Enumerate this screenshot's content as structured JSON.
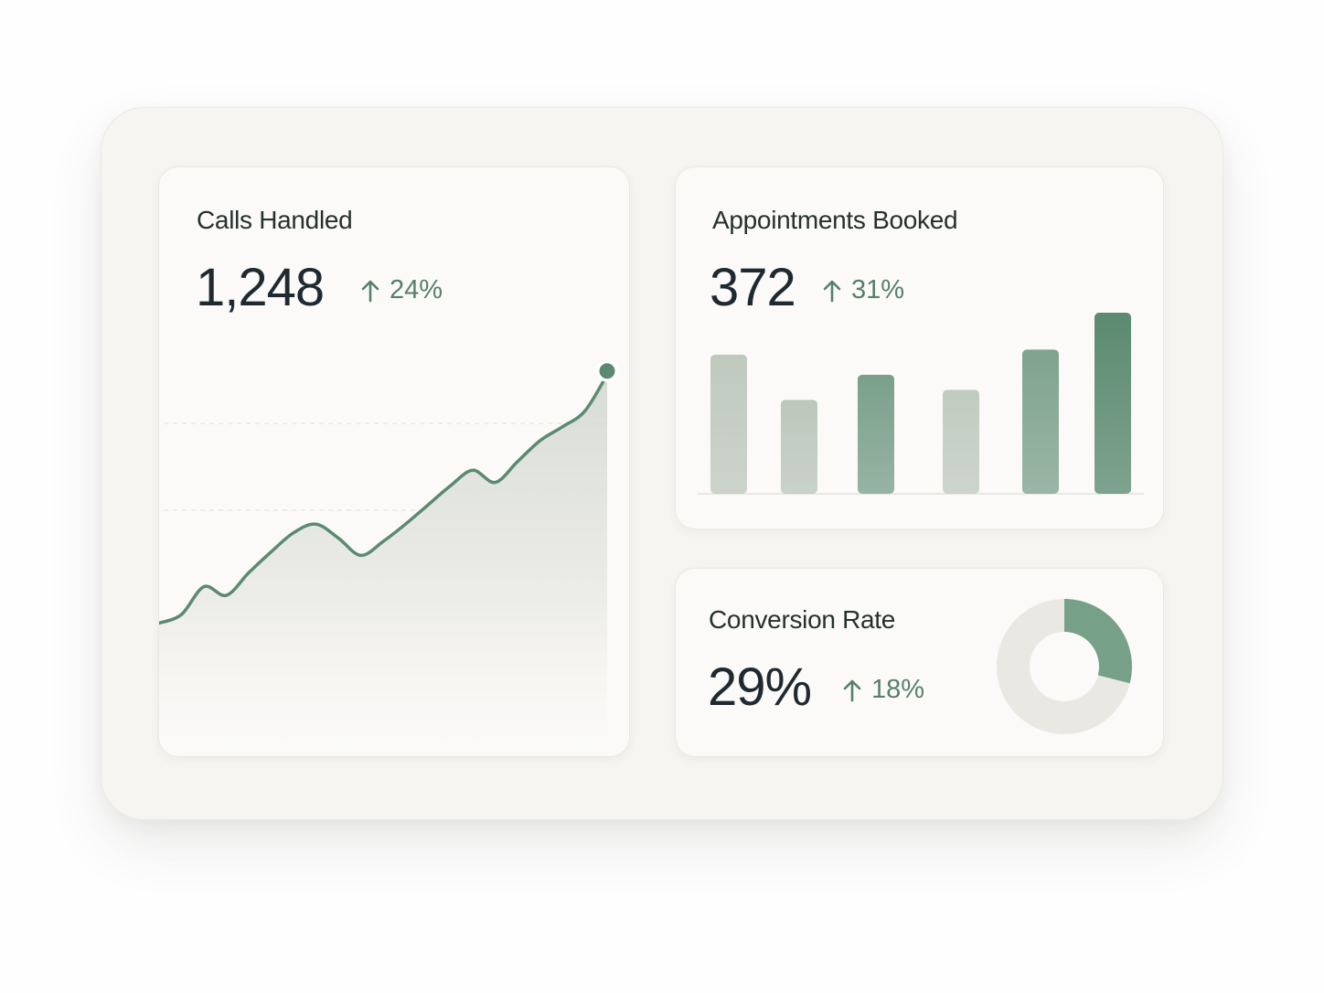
{
  "colors": {
    "accent": "#5b8a70",
    "accent_light": "#b9c5b8",
    "text_dark": "#1e2a30",
    "delta_green": "#56806b",
    "donut_track": "#e9e8e3"
  },
  "calls": {
    "title": "Calls Handled",
    "value": "1,248",
    "delta": "24%",
    "delta_icon": "arrow-up-icon"
  },
  "appointments": {
    "title": "Appointments Booked",
    "value": "372",
    "delta": "31%",
    "delta_icon": "arrow-up-icon"
  },
  "conversion": {
    "title": "Conversion Rate",
    "value": "29%",
    "delta": "18%",
    "delta_icon": "arrow-up-icon"
  },
  "chart_data": [
    {
      "type": "area",
      "x": [
        0,
        1,
        2,
        3,
        4,
        5,
        6,
        7,
        8,
        9,
        10,
        11,
        12,
        13,
        14,
        15,
        16,
        17,
        18,
        19,
        20
      ],
      "values": [
        35,
        40,
        56,
        51,
        64,
        76,
        87,
        92,
        84,
        74,
        82,
        92,
        103,
        114,
        123,
        116,
        128,
        140,
        148,
        157,
        178
      ],
      "ylim": [
        0,
        200
      ],
      "grid": true,
      "highlight_last": true
    },
    {
      "type": "bar",
      "categories": [
        "1",
        "2",
        "3",
        "4",
        "5",
        "6"
      ],
      "values": [
        83,
        56,
        71,
        62,
        86,
        108
      ],
      "ylim": [
        0,
        120
      ],
      "bar_colors": [
        "#bfc9be",
        "#bcc7bb",
        "#7aa08a",
        "#c0cbbf",
        "#7fa38e",
        "#5b8a70"
      ]
    },
    {
      "type": "pie",
      "donut": true,
      "values": [
        29,
        71
      ],
      "colors": [
        "#77a088",
        "#e9e8e3"
      ]
    }
  ]
}
